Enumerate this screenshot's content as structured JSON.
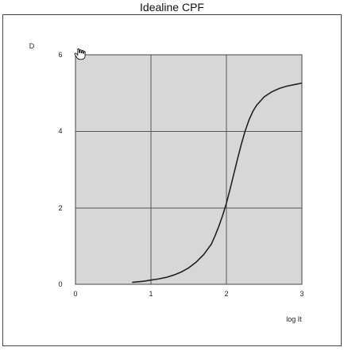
{
  "window": {
    "title": "Idealine CPF"
  },
  "chart_data": {
    "type": "line",
    "title": "Idealine CPF",
    "xlabel": "log It",
    "ylabel": "D",
    "xlim": [
      0,
      3
    ],
    "ylim": [
      0,
      6
    ],
    "x_ticks": [
      "0",
      "1",
      "2",
      "3"
    ],
    "y_ticks": [
      "0",
      "2",
      "4",
      "6"
    ],
    "grid": true,
    "series": [
      {
        "x": [
          0.75,
          0.9,
          1.0,
          1.1,
          1.2,
          1.3,
          1.4,
          1.5,
          1.6,
          1.7,
          1.8,
          1.85,
          1.9,
          1.95,
          2.0,
          2.05,
          2.1,
          2.15,
          2.2,
          2.25,
          2.3,
          2.35,
          2.4,
          2.5,
          2.6,
          2.7,
          2.8,
          2.9,
          3.0
        ],
        "y": [
          0.05,
          0.08,
          0.11,
          0.14,
          0.18,
          0.24,
          0.32,
          0.43,
          0.58,
          0.78,
          1.05,
          1.27,
          1.52,
          1.8,
          2.12,
          2.5,
          2.9,
          3.3,
          3.68,
          4.02,
          4.3,
          4.52,
          4.68,
          4.9,
          5.03,
          5.12,
          5.18,
          5.22,
          5.26
        ]
      }
    ]
  },
  "icons": {
    "cursor": "hand-cursor-icon"
  }
}
